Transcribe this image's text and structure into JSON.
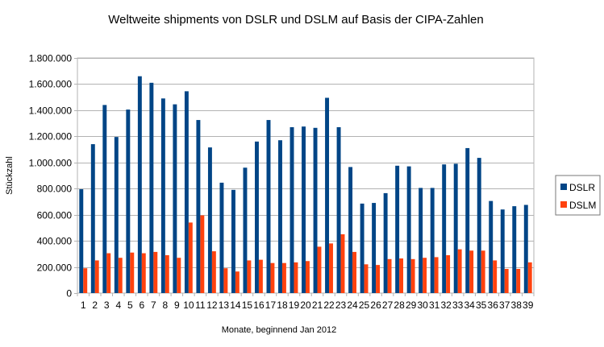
{
  "chart_data": {
    "type": "bar",
    "title": "Weltweite shipments von DSLR und DSLM auf Basis der CIPA-Zahlen",
    "xlabel": "Monate, beginnend Jan 2012",
    "ylabel": "Stückzahl",
    "ylim": [
      0,
      1800000
    ],
    "ytick_values": [
      0,
      200000,
      400000,
      600000,
      800000,
      1000000,
      1200000,
      1400000,
      1600000,
      1800000
    ],
    "ytick_labels": [
      "0",
      "200.000",
      "400.000",
      "600.000",
      "800.000",
      "1.000.000",
      "1.200.000",
      "1.400.000",
      "1.600.000",
      "1.800.000"
    ],
    "grid": true,
    "legend_position": "right",
    "categories": [
      "1",
      "2",
      "3",
      "4",
      "5",
      "6",
      "7",
      "8",
      "9",
      "10",
      "11",
      "12",
      "13",
      "14",
      "15",
      "16",
      "17",
      "18",
      "19",
      "20",
      "21",
      "22",
      "23",
      "24",
      "25",
      "26",
      "27",
      "28",
      "29",
      "30",
      "31",
      "32",
      "33",
      "34",
      "35",
      "36",
      "37",
      "38",
      "39"
    ],
    "series": [
      {
        "name": "DSLR",
        "color": "#004586",
        "values": [
          795000,
          1140000,
          1440000,
          1195000,
          1405000,
          1660000,
          1610000,
          1490000,
          1445000,
          1545000,
          1325000,
          1115000,
          845000,
          790000,
          960000,
          1160000,
          1325000,
          1170000,
          1270000,
          1275000,
          1265000,
          1495000,
          1270000,
          965000,
          685000,
          690000,
          765000,
          975000,
          970000,
          805000,
          805000,
          985000,
          990000,
          1110000,
          1035000,
          705000,
          640000,
          665000,
          675000
        ]
      },
      {
        "name": "DSLM",
        "color": "#ff420e",
        "values": [
          190000,
          250000,
          305000,
          270000,
          310000,
          305000,
          315000,
          290000,
          270000,
          540000,
          595000,
          320000,
          190000,
          165000,
          250000,
          255000,
          230000,
          230000,
          235000,
          245000,
          355000,
          380000,
          450000,
          315000,
          220000,
          215000,
          260000,
          265000,
          260000,
          270000,
          275000,
          290000,
          335000,
          325000,
          325000,
          250000,
          185000,
          185000,
          235000
        ]
      }
    ]
  }
}
